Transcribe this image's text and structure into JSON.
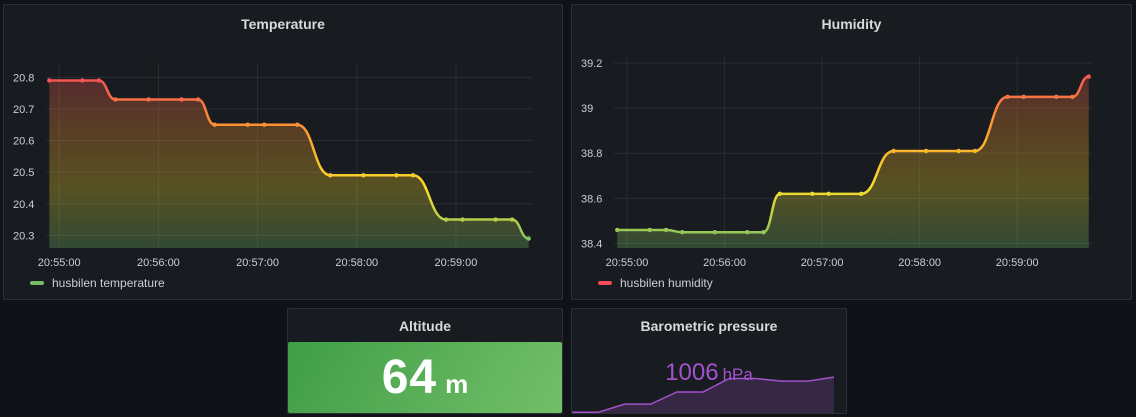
{
  "panels": {
    "temperature": {
      "title": "Temperature",
      "legend": "husbilen temperature",
      "legend_color": "#73bf69"
    },
    "humidity": {
      "title": "Humidity",
      "legend": "husbilen humidity",
      "legend_color": "#f2495c"
    },
    "altitude": {
      "title": "Altitude",
      "value": "64",
      "unit": "m",
      "color": "#73bf69"
    },
    "pressure": {
      "title": "Barometric pressure",
      "value": "1006",
      "unit": "hPa",
      "color": "#a352cc"
    }
  },
  "chart_data": [
    {
      "type": "line",
      "title": "Temperature",
      "x": [
        "20:54:54",
        "20:55:14",
        "20:55:24",
        "20:55:34",
        "20:55:54",
        "20:56:14",
        "20:56:24",
        "20:56:34",
        "20:56:54",
        "20:57:04",
        "20:57:24",
        "20:57:44",
        "20:58:04",
        "20:58:24",
        "20:58:34",
        "20:58:54",
        "20:59:04",
        "20:59:24",
        "20:59:34",
        "20:59:44"
      ],
      "xticks": [
        "20:55:00",
        "20:56:00",
        "20:57:00",
        "20:58:00",
        "20:59:00"
      ],
      "yticks": [
        "20.3",
        "20.4",
        "20.5",
        "20.6",
        "20.7",
        "20.8"
      ],
      "ylim": [
        20.26,
        20.82
      ],
      "series": [
        {
          "name": "husbilen temperature",
          "values": [
            20.79,
            20.79,
            20.79,
            20.73,
            20.73,
            20.73,
            20.73,
            20.65,
            20.65,
            20.65,
            20.65,
            20.49,
            20.49,
            20.49,
            20.49,
            20.35,
            20.35,
            20.35,
            20.35,
            20.29
          ]
        }
      ],
      "gradient": [
        "#73bf69",
        "#fade2a",
        "#ff9830",
        "#f2495c"
      ]
    },
    {
      "type": "line",
      "title": "Humidity",
      "x": [
        "20:54:54",
        "20:55:14",
        "20:55:24",
        "20:55:34",
        "20:55:54",
        "20:56:14",
        "20:56:24",
        "20:56:34",
        "20:56:54",
        "20:57:04",
        "20:57:24",
        "20:57:44",
        "20:58:04",
        "20:58:24",
        "20:58:34",
        "20:58:54",
        "20:59:04",
        "20:59:24",
        "20:59:34",
        "20:59:44"
      ],
      "xticks": [
        "20:55:00",
        "20:56:00",
        "20:57:00",
        "20:58:00",
        "20:59:00"
      ],
      "yticks": [
        "38.4",
        "38.6",
        "38.8",
        "39",
        "39.2"
      ],
      "ylim": [
        38.38,
        39.2
      ],
      "series": [
        {
          "name": "husbilen humidity",
          "values": [
            38.46,
            38.46,
            38.46,
            38.45,
            38.45,
            38.45,
            38.45,
            38.62,
            38.62,
            38.62,
            38.62,
            38.81,
            38.81,
            38.81,
            38.81,
            39.05,
            39.05,
            39.05,
            39.05,
            39.14
          ]
        }
      ],
      "gradient": [
        "#73bf69",
        "#fade2a",
        "#ff9830",
        "#f2495c"
      ]
    },
    {
      "type": "area",
      "title": "Barometric pressure",
      "values": [
        1003.0,
        1003.0,
        1003.6,
        1003.6,
        1004.5,
        1004.5,
        1005.5,
        1005.5,
        1005.3,
        1005.3,
        1005.6
      ],
      "ylim": [
        1002.8,
        1006.2
      ],
      "color": "#a352cc"
    }
  ]
}
